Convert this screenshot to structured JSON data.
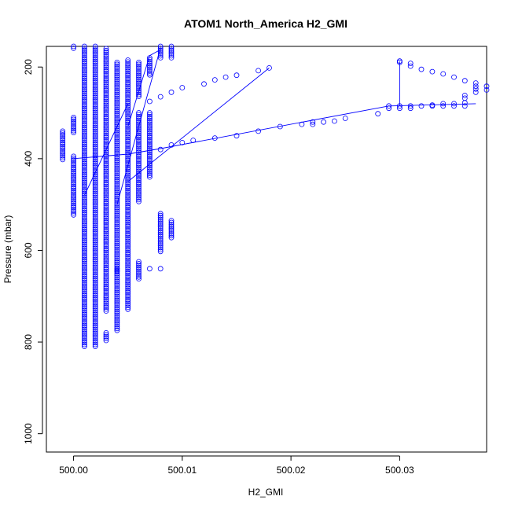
{
  "chart_data": {
    "type": "scatter",
    "title": "ATOM1 North_America H2_GMI",
    "xlabel": "H2_GMI",
    "ylabel": "Pressure (mbar)",
    "xlim": [
      499.9975,
      500.038
    ],
    "ylim": [
      1040,
      155
    ],
    "y_reversed": true,
    "grid": false,
    "marker": "open-circle",
    "color": "#0000ff",
    "x_ticks": [
      {
        "value": 500.0,
        "label": "500.00"
      },
      {
        "value": 500.01,
        "label": "500.01"
      },
      {
        "value": 500.02,
        "label": "500.02"
      },
      {
        "value": 500.03,
        "label": "500.03"
      }
    ],
    "y_ticks": [
      {
        "value": 200,
        "label": "200"
      },
      {
        "value": 400,
        "label": "400"
      },
      {
        "value": 600,
        "label": "600"
      },
      {
        "value": 800,
        "label": "800"
      },
      {
        "value": 1000,
        "label": "1000"
      }
    ],
    "columns": [
      {
        "x": 500.0,
        "ymin": 155,
        "ymax": 160
      },
      {
        "x": 499.999,
        "ymin": 340,
        "ymax": 405
      },
      {
        "x": 500.0,
        "ymin": 310,
        "ymax": 345
      },
      {
        "x": 500.0,
        "ymin": 395,
        "ymax": 525
      },
      {
        "x": 500.001,
        "ymin": 155,
        "ymax": 810
      },
      {
        "x": 500.002,
        "ymin": 155,
        "ymax": 810
      },
      {
        "x": 500.003,
        "ymin": 160,
        "ymax": 735
      },
      {
        "x": 500.003,
        "ymin": 780,
        "ymax": 800
      },
      {
        "x": 500.004,
        "ymin": 190,
        "ymax": 775
      },
      {
        "x": 500.005,
        "ymin": 185,
        "ymax": 730
      },
      {
        "x": 500.006,
        "ymin": 190,
        "ymax": 265
      },
      {
        "x": 500.006,
        "ymin": 300,
        "ymax": 495
      },
      {
        "x": 500.006,
        "ymin": 625,
        "ymax": 665
      },
      {
        "x": 500.007,
        "ymin": 180,
        "ymax": 220
      },
      {
        "x": 500.007,
        "ymin": 300,
        "ymax": 440
      },
      {
        "x": 500.008,
        "ymin": 155,
        "ymax": 180
      },
      {
        "x": 500.008,
        "ymin": 520,
        "ymax": 605
      },
      {
        "x": 500.009,
        "ymin": 155,
        "ymax": 180
      },
      {
        "x": 500.009,
        "ymin": 535,
        "ymax": 575
      }
    ],
    "points": [
      [
        500.008,
        380
      ],
      [
        500.008,
        640
      ],
      [
        500.007,
        640
      ],
      [
        500.004,
        640
      ],
      [
        500.004,
        645
      ],
      [
        500.009,
        370
      ],
      [
        500.01,
        365
      ],
      [
        500.011,
        360
      ],
      [
        500.013,
        355
      ],
      [
        500.015,
        350
      ],
      [
        500.017,
        340
      ],
      [
        500.019,
        330
      ],
      [
        500.021,
        325
      ],
      [
        500.022,
        320
      ],
      [
        500.022,
        325
      ],
      [
        500.023,
        320
      ],
      [
        500.024,
        318
      ],
      [
        500.025,
        312
      ],
      [
        500.028,
        302
      ],
      [
        500.029,
        290
      ],
      [
        500.029,
        285
      ],
      [
        500.03,
        285
      ],
      [
        500.03,
        290
      ],
      [
        500.031,
        285
      ],
      [
        500.031,
        290
      ],
      [
        500.032,
        285
      ],
      [
        500.033,
        285
      ],
      [
        500.033,
        283
      ],
      [
        500.034,
        285
      ],
      [
        500.034,
        280
      ],
      [
        500.035,
        280
      ],
      [
        500.035,
        285
      ],
      [
        500.036,
        285
      ],
      [
        500.036,
        278
      ],
      [
        500.036,
        268
      ],
      [
        500.036,
        262
      ],
      [
        500.037,
        255
      ],
      [
        500.037,
        248
      ],
      [
        500.037,
        242
      ],
      [
        500.037,
        235
      ],
      [
        500.038,
        250
      ],
      [
        500.038,
        242
      ],
      [
        500.036,
        230
      ],
      [
        500.035,
        222
      ],
      [
        500.034,
        215
      ],
      [
        500.033,
        210
      ],
      [
        500.032,
        205
      ],
      [
        500.031,
        198
      ],
      [
        500.031,
        192
      ],
      [
        500.03,
        187
      ],
      [
        500.03,
        190
      ],
      [
        500.018,
        202
      ],
      [
        500.017,
        208
      ],
      [
        500.015,
        218
      ],
      [
        500.014,
        222
      ],
      [
        500.013,
        228
      ],
      [
        500.012,
        237
      ],
      [
        500.01,
        245
      ],
      [
        500.009,
        255
      ],
      [
        500.008,
        265
      ],
      [
        500.007,
        275
      ]
    ],
    "lines": [
      [
        [
          500.0,
          400
        ],
        [
          500.005,
          390
        ],
        [
          500.008,
          378
        ],
        [
          500.029,
          285
        ],
        [
          500.037,
          280
        ]
      ],
      [
        [
          500.03,
          188
        ],
        [
          500.03,
          285
        ]
      ],
      [
        [
          500.004,
          500
        ],
        [
          500.008,
          158
        ]
      ],
      [
        [
          500.005,
          450
        ],
        [
          500.018,
          202
        ]
      ],
      [
        [
          500.005,
          330
        ],
        [
          500.007,
          175
        ],
        [
          500.008,
          162
        ]
      ],
      [
        [
          500.001,
          480
        ],
        [
          500.005,
          280
        ]
      ]
    ]
  }
}
